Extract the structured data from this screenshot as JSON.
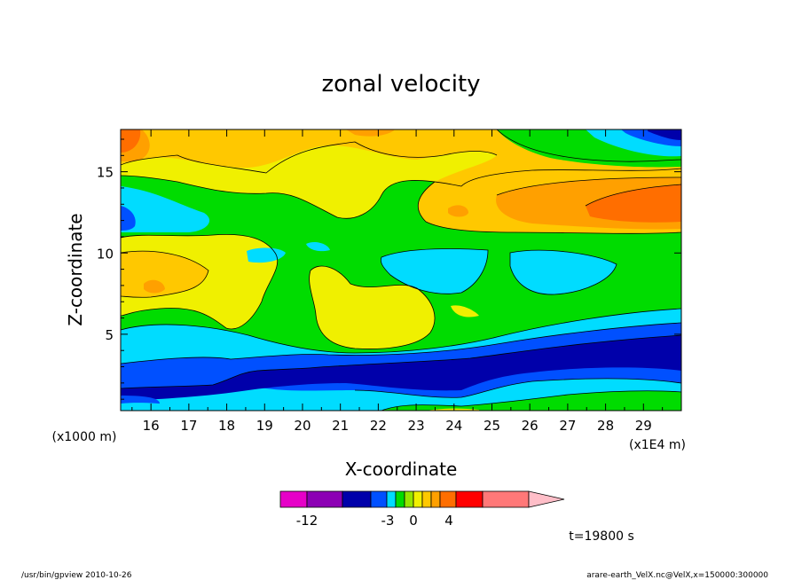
{
  "chart_data": {
    "type": "heatmap",
    "title": "zonal velocity",
    "xlabel": "X-coordinate",
    "ylabel": "Z-coordinate",
    "x_unit": "(x1E4 m)",
    "y_unit": "(x1000 m)",
    "xlim": [
      15.2,
      30
    ],
    "ylim": [
      0.3,
      17.6
    ],
    "x_ticks": [
      "16",
      "17",
      "18",
      "19",
      "20",
      "21",
      "22",
      "23",
      "24",
      "25",
      "26",
      "27",
      "28",
      "29"
    ],
    "y_ticks": [
      "5",
      "10",
      "15"
    ],
    "colorbar": {
      "levels": [
        "-12",
        "-3",
        "0",
        "4"
      ],
      "colors": [
        "#e600c8",
        "#8c00b4",
        "#0000aa",
        "#0050ff",
        "#00dcff",
        "#00dc00",
        "#96e600",
        "#f0f000",
        "#ffc800",
        "#ffa000",
        "#ff6e00",
        "#ff0000",
        "#ff7878",
        "#ffbec8"
      ]
    },
    "time_label": "t=19800 s",
    "footer_left": "/usr/bin/gpview   2010-10-26",
    "footer_right": "arare-earth_VelX.nc@VelX,x=150000:300000"
  }
}
